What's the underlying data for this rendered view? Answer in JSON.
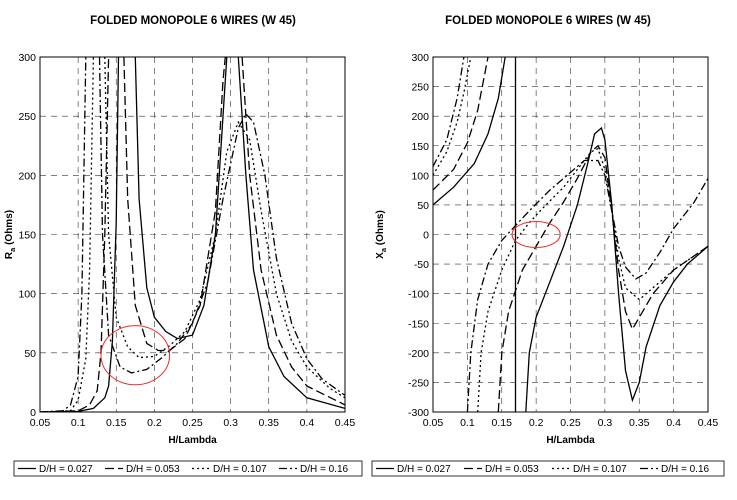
{
  "chart_data": [
    {
      "type": "line",
      "title": "FOLDED MONOPOLE 6 WIRES (W 45)",
      "xlabel": "H/Lambda",
      "ylabel_main": "R",
      "ylabel_sub": "a",
      "ylabel_rest": " (Ohms)",
      "xlim": [
        0.05,
        0.45
      ],
      "ylim": [
        0,
        300
      ],
      "xticks": [
        "0.05",
        "0.1",
        "0.15",
        "0.2",
        "0.25",
        "0.3",
        "0.35",
        "0.4",
        "0.45"
      ],
      "yticks": [
        "0",
        "50",
        "100",
        "150",
        "200",
        "250",
        "300"
      ],
      "grid": true,
      "legend_position": "bottom",
      "series": [
        {
          "name": "D/H = 0.027",
          "dash": "solid",
          "segments": [
            [
              [
                0.05,
                0
              ],
              [
                0.1,
                0.5
              ],
              [
                0.12,
                3
              ],
              [
                0.135,
                12
              ],
              [
                0.14,
                22
              ],
              [
                0.145,
                60
              ],
              [
                0.15,
                160
              ],
              [
                0.153,
                300
              ]
            ],
            [
              [
                0.175,
                300
              ],
              [
                0.18,
                180
              ],
              [
                0.19,
                105
              ],
              [
                0.2,
                80
              ],
              [
                0.215,
                68
              ],
              [
                0.23,
                62
              ],
              [
                0.25,
                65
              ],
              [
                0.265,
                90
              ],
              [
                0.28,
                150
              ],
              [
                0.29,
                250
              ],
              [
                0.295,
                300
              ]
            ],
            [
              [
                0.31,
                300
              ],
              [
                0.32,
                200
              ],
              [
                0.33,
                120
              ],
              [
                0.35,
                55
              ],
              [
                0.37,
                30
              ],
              [
                0.4,
                12
              ],
              [
                0.45,
                3
              ]
            ]
          ]
        },
        {
          "name": "D/H = 0.053",
          "dash": "long-dash",
          "segments": [
            [
              [
                0.05,
                0
              ],
              [
                0.1,
                1
              ],
              [
                0.115,
                6
              ],
              [
                0.125,
                18
              ],
              [
                0.13,
                50
              ],
              [
                0.135,
                150
              ],
              [
                0.14,
                300
              ]
            ],
            [
              [
                0.16,
                300
              ],
              [
                0.165,
                180
              ],
              [
                0.175,
                90
              ],
              [
                0.19,
                58
              ],
              [
                0.205,
                52
              ],
              [
                0.22,
                52
              ],
              [
                0.24,
                62
              ],
              [
                0.26,
                90
              ],
              [
                0.28,
                170
              ],
              [
                0.29,
                280
              ],
              [
                0.293,
                300
              ]
            ],
            [
              [
                0.315,
                300
              ],
              [
                0.325,
                200
              ],
              [
                0.34,
                120
              ],
              [
                0.36,
                65
              ],
              [
                0.38,
                38
              ],
              [
                0.4,
                22
              ],
              [
                0.45,
                6
              ]
            ]
          ]
        },
        {
          "name": "D/H = 0.107",
          "dash": "dotted",
          "segments": [
            [
              [
                0.05,
                0
              ],
              [
                0.09,
                1
              ],
              [
                0.1,
                10
              ],
              [
                0.11,
                45
              ],
              [
                0.115,
                120
              ],
              [
                0.12,
                300
              ]
            ],
            [
              [
                0.135,
                300
              ],
              [
                0.14,
                150
              ],
              [
                0.15,
                80
              ],
              [
                0.165,
                55
              ],
              [
                0.18,
                46
              ],
              [
                0.2,
                47
              ],
              [
                0.22,
                56
              ],
              [
                0.24,
                68
              ],
              [
                0.26,
                95
              ],
              [
                0.28,
                150
              ],
              [
                0.295,
                220
              ],
              [
                0.31,
                245
              ],
              [
                0.325,
                230
              ],
              [
                0.34,
                170
              ],
              [
                0.36,
                100
              ],
              [
                0.38,
                60
              ],
              [
                0.4,
                38
              ],
              [
                0.43,
                20
              ],
              [
                0.45,
                12
              ]
            ]
          ]
        },
        {
          "name": "D/H = 0.16",
          "dash": "dash-dot",
          "segments": [
            [
              [
                0.05,
                0
              ],
              [
                0.08,
                1
              ],
              [
                0.09,
                6
              ],
              [
                0.1,
                30
              ],
              [
                0.105,
                100
              ],
              [
                0.11,
                300
              ]
            ],
            [
              [
                0.128,
                300
              ],
              [
                0.132,
                150
              ],
              [
                0.14,
                65
              ],
              [
                0.155,
                38
              ],
              [
                0.17,
                33
              ],
              [
                0.19,
                36
              ],
              [
                0.21,
                46
              ],
              [
                0.23,
                58
              ],
              [
                0.25,
                75
              ],
              [
                0.27,
                110
              ],
              [
                0.29,
                180
              ],
              [
                0.31,
                240
              ],
              [
                0.32,
                252
              ],
              [
                0.33,
                245
              ],
              [
                0.345,
                200
              ],
              [
                0.36,
                130
              ],
              [
                0.38,
                75
              ],
              [
                0.4,
                45
              ],
              [
                0.42,
                28
              ],
              [
                0.45,
                14
              ]
            ]
          ]
        }
      ],
      "annotation": {
        "type": "ellipse",
        "color": "#e8302a",
        "center": [
          0.175,
          48
        ],
        "radius": [
          0.045,
          25
        ]
      }
    },
    {
      "type": "line",
      "title": "FOLDED MONOPOLE 6 WIRES (W 45)",
      "xlabel": "H/Lambda",
      "ylabel_main": "X",
      "ylabel_sub": "a",
      "ylabel_rest": " (Ohms)",
      "xlim": [
        0.05,
        0.45
      ],
      "ylim": [
        -300,
        300
      ],
      "xticks": [
        "0.05",
        "0.1",
        "0.15",
        "0.2",
        "0.25",
        "0.3",
        "0.35",
        "0.4",
        "0.45"
      ],
      "yticks": [
        "-300",
        "-250",
        "-200",
        "-150",
        "-100",
        "-50",
        "0",
        "50",
        "100",
        "150",
        "200",
        "250",
        "300"
      ],
      "grid": true,
      "legend_position": "bottom",
      "series": [
        {
          "name": "D/H = 0.027",
          "dash": "solid",
          "segments": [
            [
              [
                0.05,
                50
              ],
              [
                0.08,
                80
              ],
              [
                0.11,
                120
              ],
              [
                0.13,
                170
              ],
              [
                0.145,
                230
              ],
              [
                0.155,
                300
              ]
            ],
            [
              [
                0.17,
                300
              ],
              [
                0.17,
                -300
              ]
            ],
            [
              [
                0.185,
                -300
              ],
              [
                0.19,
                -200
              ],
              [
                0.2,
                -140
              ],
              [
                0.22,
                -80
              ],
              [
                0.24,
                -20
              ],
              [
                0.26,
                50
              ],
              [
                0.275,
                120
              ],
              [
                0.285,
                170
              ],
              [
                0.295,
                180
              ],
              [
                0.3,
                160
              ],
              [
                0.31,
                50
              ],
              [
                0.32,
                -100
              ],
              [
                0.33,
                -230
              ],
              [
                0.34,
                -280
              ],
              [
                0.35,
                -250
              ],
              [
                0.36,
                -190
              ],
              [
                0.38,
                -120
              ],
              [
                0.4,
                -80
              ],
              [
                0.42,
                -50
              ],
              [
                0.45,
                -20
              ]
            ]
          ]
        },
        {
          "name": "D/H = 0.053",
          "dash": "long-dash",
          "segments": [
            [
              [
                0.05,
                75
              ],
              [
                0.08,
                110
              ],
              [
                0.1,
                155
              ],
              [
                0.115,
                210
              ],
              [
                0.125,
                270
              ],
              [
                0.13,
                300
              ]
            ],
            [
              [
                0.145,
                -300
              ],
              [
                0.15,
                -200
              ],
              [
                0.16,
                -130
              ],
              [
                0.18,
                -60
              ],
              [
                0.2,
                -20
              ],
              [
                0.22,
                20
              ],
              [
                0.24,
                55
              ],
              [
                0.26,
                95
              ],
              [
                0.28,
                140
              ],
              [
                0.29,
                150
              ],
              [
                0.3,
                130
              ],
              [
                0.31,
                40
              ],
              [
                0.32,
                -60
              ],
              [
                0.33,
                -130
              ],
              [
                0.34,
                -160
              ],
              [
                0.35,
                -140
              ],
              [
                0.37,
                -100
              ],
              [
                0.4,
                -60
              ],
              [
                0.45,
                -20
              ]
            ]
          ]
        },
        {
          "name": "D/H = 0.107",
          "dash": "dotted",
          "segments": [
            [
              [
                0.05,
                100
              ],
              [
                0.07,
                140
              ],
              [
                0.085,
                190
              ],
              [
                0.095,
                240
              ],
              [
                0.105,
                300
              ]
            ],
            [
              [
                0.115,
                -300
              ],
              [
                0.12,
                -200
              ],
              [
                0.13,
                -130
              ],
              [
                0.15,
                -60
              ],
              [
                0.17,
                -10
              ],
              [
                0.19,
                20
              ],
              [
                0.21,
                45
              ],
              [
                0.24,
                80
              ],
              [
                0.26,
                110
              ],
              [
                0.28,
                140
              ],
              [
                0.29,
                145
              ],
              [
                0.3,
                110
              ],
              [
                0.31,
                40
              ],
              [
                0.32,
                -40
              ],
              [
                0.33,
                -90
              ],
              [
                0.35,
                -110
              ],
              [
                0.37,
                -90
              ],
              [
                0.4,
                -60
              ],
              [
                0.45,
                -20
              ]
            ]
          ]
        },
        {
          "name": "D/H = 0.16",
          "dash": "dash-dot",
          "segments": [
            [
              [
                0.05,
                115
              ],
              [
                0.07,
                160
              ],
              [
                0.085,
                230
              ],
              [
                0.095,
                300
              ]
            ],
            [
              [
                0.1,
                -300
              ],
              [
                0.105,
                -200
              ],
              [
                0.115,
                -110
              ],
              [
                0.13,
                -50
              ],
              [
                0.15,
                -10
              ],
              [
                0.17,
                15
              ],
              [
                0.19,
                40
              ],
              [
                0.22,
                75
              ],
              [
                0.25,
                105
              ],
              [
                0.27,
                125
              ],
              [
                0.29,
                125
              ],
              [
                0.3,
                100
              ],
              [
                0.31,
                40
              ],
              [
                0.32,
                -20
              ],
              [
                0.33,
                -55
              ],
              [
                0.345,
                -75
              ],
              [
                0.36,
                -65
              ],
              [
                0.38,
                -30
              ],
              [
                0.4,
                10
              ],
              [
                0.43,
                55
              ],
              [
                0.45,
                95
              ]
            ]
          ]
        }
      ],
      "annotation": {
        "type": "ellipse",
        "color": "#e8302a",
        "center": [
          0.2,
          0
        ],
        "radius": [
          0.035,
          22
        ]
      }
    }
  ]
}
